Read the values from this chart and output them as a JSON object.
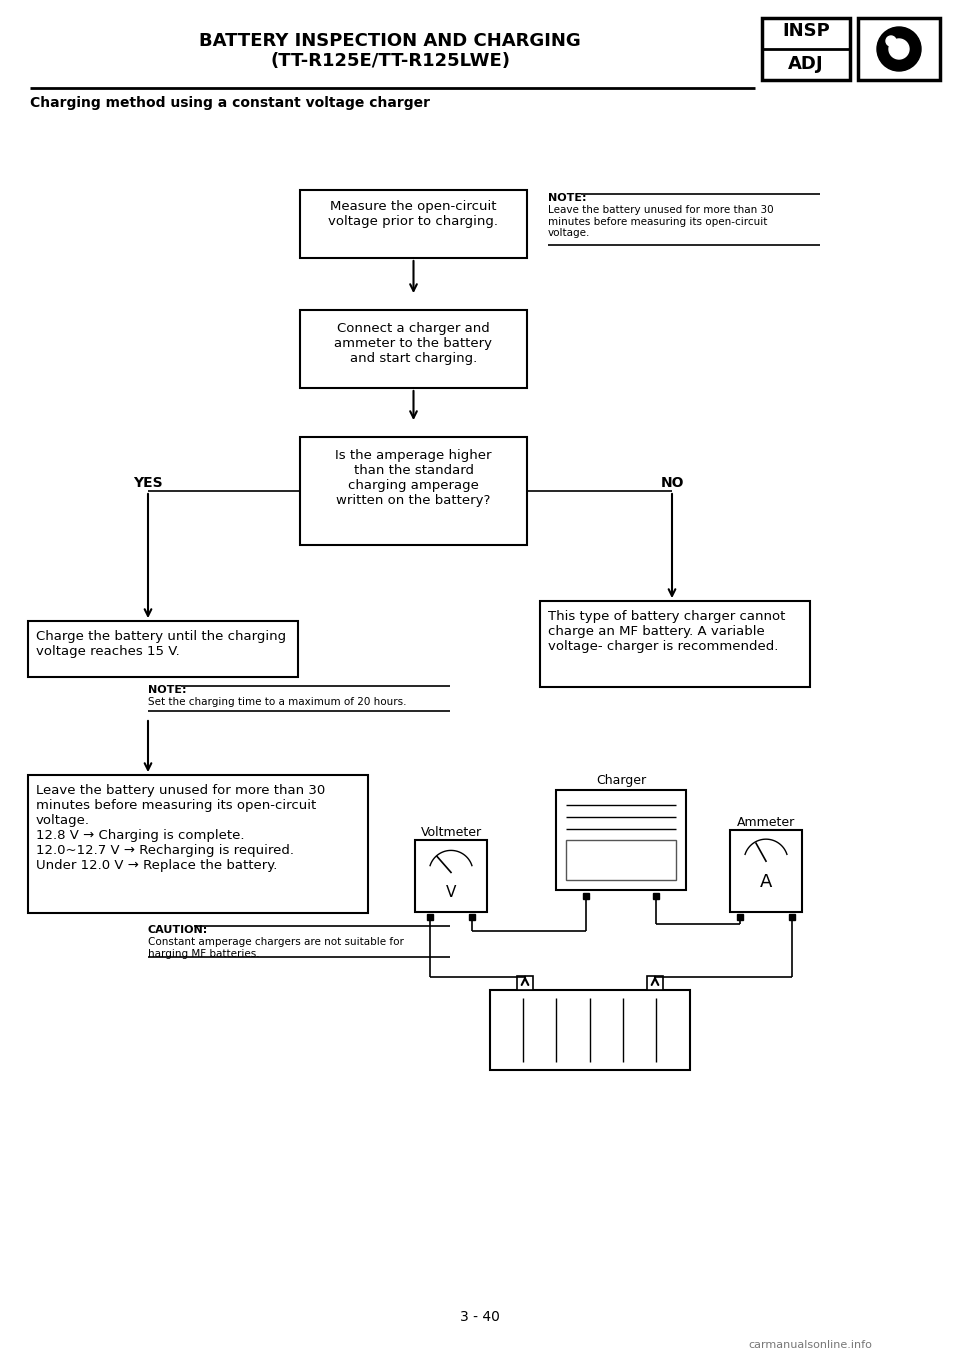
{
  "page_title_line1": "BATTERY INSPECTION AND CHARGING",
  "page_title_line2": "(TT-R125E/TT-R125LWE)",
  "insp_label": "INSP",
  "adj_label": "ADJ",
  "section_title": "Charging method using a constant voltage charger",
  "page_number": "3 - 40",
  "watermark": "carmanualsonline.info",
  "box1_text": "Measure the open-circuit\nvoltage prior to charging.",
  "note1_title": "NOTE:",
  "note1_text": "Leave the battery unused for more than 30\nminutes before measuring its open-circuit\nvoltage.",
  "box2_text": "Connect a charger and\nammeter to the battery\nand start charging.",
  "box3_text": "Is the amperage higher\nthan the standard\ncharging amperage\nwritten on the battery?",
  "yes_label": "YES",
  "no_label": "NO",
  "box4_text": "Charge the battery until the charging\nvoltage reaches 15 V.",
  "note2_title": "NOTE:",
  "note2_text": "Set the charging time to a maximum of 20 hours.",
  "box5_text": "This type of battery charger cannot\ncharge an MF battery. A variable\nvoltage- charger is recommended.",
  "box6_text": "Leave the battery unused for more than 30\nminutes before measuring its open-circuit\nvoltage.\n12.8 V → Charging is complete.\n12.0~12.7 V → Recharging is required.\nUnder 12.0 V → Replace the battery.",
  "caution_title": "CAUTION:",
  "caution_text": "Constant amperage chargers are not suitable for\nharging MF batteries.",
  "charger_label": "Charger",
  "voltmeter_label": "Voltmeter",
  "ammeter_label": "Ammeter",
  "bg_color": "#ffffff",
  "box_edge_color": "#000000",
  "text_color": "#000000",
  "line_color": "#000000"
}
